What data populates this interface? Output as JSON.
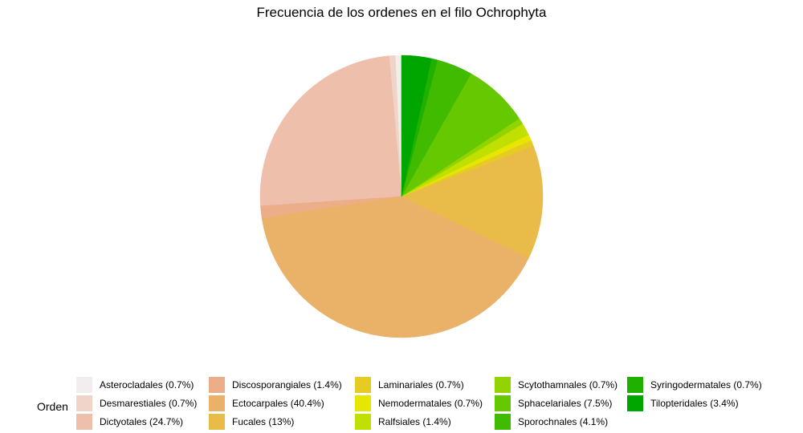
{
  "chart_data": {
    "type": "pie",
    "title": "Frecuencia de los ordenes en el filo Ochrophyta",
    "legend_title": "Orden",
    "legend_placement": "bottom",
    "slices": [
      {
        "label": "Asterocladales (0.7%)",
        "value": 0.7,
        "color": "#f3eeee"
      },
      {
        "label": "Desmarestiales (0.7%)",
        "value": 0.7,
        "color": "#f0d3c9"
      },
      {
        "label": "Dictyotales (24.7%)",
        "value": 24.7,
        "color": "#eebfab"
      },
      {
        "label": "Discosporangiales (1.4%)",
        "value": 1.4,
        "color": "#ecae88"
      },
      {
        "label": "Ectocarpales (40.4%)",
        "value": 40.4,
        "color": "#eab169"
      },
      {
        "label": "Fucales (13%)",
        "value": 13,
        "color": "#e9bb48"
      },
      {
        "label": "Laminariales (0.7%)",
        "value": 0.7,
        "color": "#e6cc22"
      },
      {
        "label": "Nemodermatales (0.7%)",
        "value": 0.7,
        "color": "#e6e600"
      },
      {
        "label": "Ralfsiales (1.4%)",
        "value": 1.4,
        "color": "#bfe000"
      },
      {
        "label": "Scytothamnales (0.7%)",
        "value": 0.7,
        "color": "#93d400"
      },
      {
        "label": "Sphacelariales (7.5%)",
        "value": 7.5,
        "color": "#66c800"
      },
      {
        "label": "Sporochnales (4.1%)",
        "value": 4.1,
        "color": "#40bb00"
      },
      {
        "label": "Syringodermatales (0.7%)",
        "value": 0.7,
        "color": "#1fb000"
      },
      {
        "label": "Tilopteridales (3.4%)",
        "value": 3.4,
        "color": "#00a600"
      }
    ]
  }
}
